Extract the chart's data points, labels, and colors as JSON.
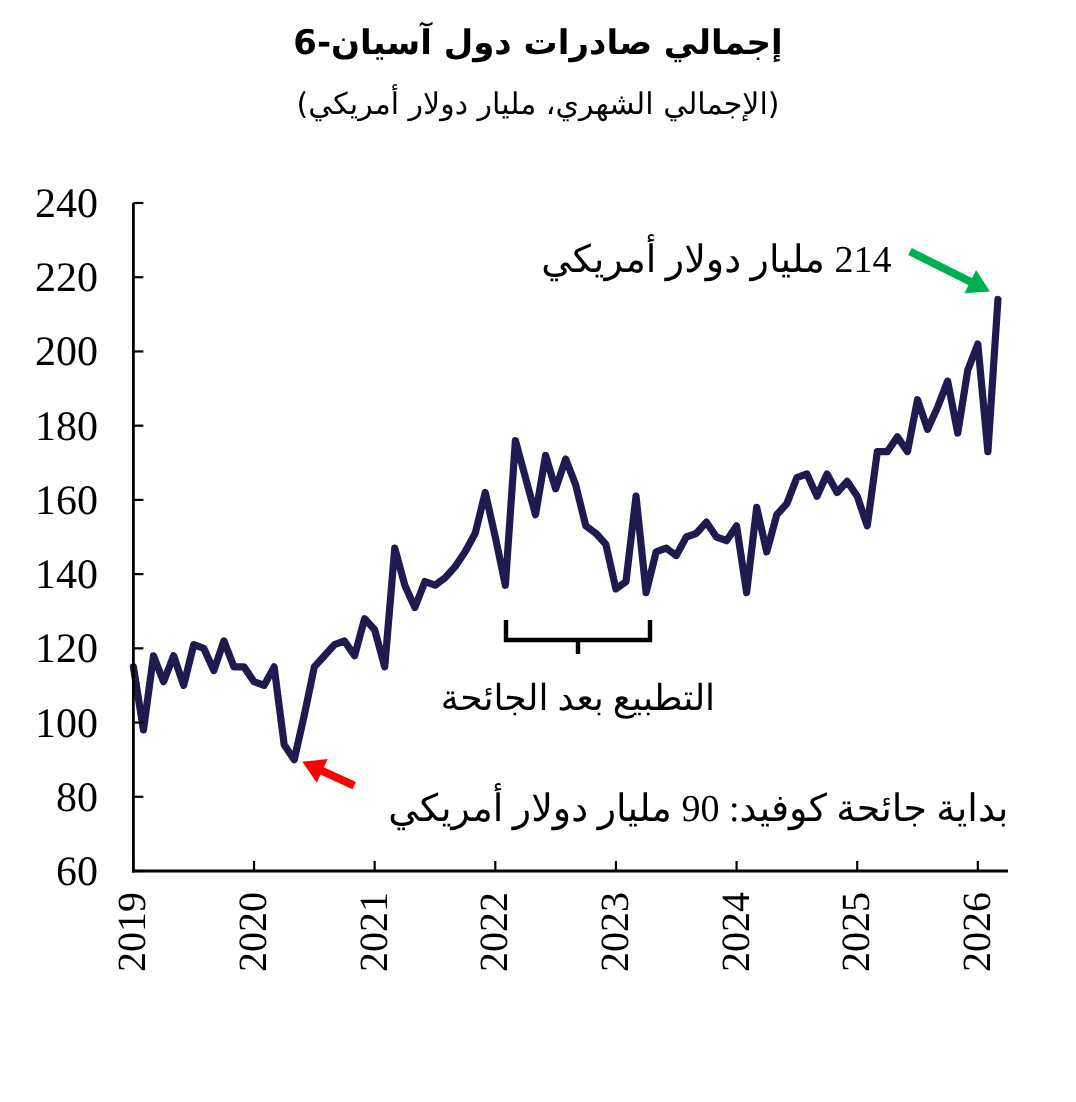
{
  "chart_data": {
    "type": "line",
    "title": "إجمالي صادرات دول آسيان-6",
    "subtitle": "(الإجمالي الشهري، مليار دولار أمريكي)",
    "x": [
      "2019-01",
      "2019-02",
      "2019-03",
      "2019-04",
      "2019-05",
      "2019-06",
      "2019-07",
      "2019-08",
      "2019-09",
      "2019-10",
      "2019-11",
      "2019-12",
      "2020-01",
      "2020-02",
      "2020-03",
      "2020-04",
      "2020-05",
      "2020-06",
      "2020-07",
      "2020-08",
      "2020-09",
      "2020-10",
      "2020-11",
      "2020-12",
      "2021-01",
      "2021-02",
      "2021-03",
      "2021-04",
      "2021-05",
      "2021-06",
      "2021-07",
      "2021-08",
      "2021-09",
      "2021-10",
      "2021-11",
      "2021-12",
      "2022-01",
      "2022-02",
      "2022-03",
      "2022-04",
      "2022-05",
      "2022-06",
      "2022-07",
      "2022-08",
      "2022-09",
      "2022-10",
      "2022-11",
      "2022-12",
      "2023-01",
      "2023-02",
      "2023-03",
      "2023-04",
      "2023-05",
      "2023-06",
      "2023-07",
      "2023-08",
      "2023-09",
      "2023-10",
      "2023-11",
      "2023-12",
      "2024-01",
      "2024-02",
      "2024-03",
      "2024-04",
      "2024-05",
      "2024-06",
      "2024-07",
      "2024-08",
      "2024-09",
      "2024-10",
      "2024-11",
      "2024-12",
      "2025-01",
      "2025-02",
      "2025-03",
      "2025-04",
      "2025-05",
      "2025-06",
      "2025-07",
      "2025-08",
      "2025-09",
      "2025-10",
      "2025-11",
      "2025-12",
      "2026-01",
      "2026-02",
      "2026-03"
    ],
    "series": [
      {
        "color": "#1f1a4f",
        "values": [
          115,
          98,
          118,
          111,
          118,
          110,
          121,
          120,
          114,
          122,
          115,
          115,
          111,
          110,
          115,
          94,
          90,
          102,
          115,
          118,
          121,
          122,
          118,
          128,
          125,
          115,
          147,
          137,
          131,
          138,
          137,
          139,
          142,
          146,
          151,
          162,
          150,
          137,
          176,
          166,
          156,
          172,
          163,
          171,
          164,
          153,
          151,
          148,
          136,
          138,
          161,
          135,
          146,
          147,
          145,
          150,
          151,
          154,
          150,
          149,
          153,
          135,
          158,
          146,
          156,
          159,
          166,
          167,
          161,
          167,
          162,
          165,
          161,
          153,
          173,
          173,
          177,
          173,
          187,
          179,
          185,
          192,
          178,
          195,
          202,
          173,
          214
        ]
      }
    ],
    "xlim": [
      "2019",
      "2026-04"
    ],
    "xticks": [
      "2019",
      "2020",
      "2021",
      "2022",
      "2023",
      "2024",
      "2025",
      "2026"
    ],
    "ylim": [
      60,
      240
    ],
    "yticks": [
      60,
      80,
      100,
      120,
      140,
      160,
      180,
      200,
      220,
      240
    ],
    "line_style": "solid",
    "annotations": [
      {
        "text": "214 مليار دولار أمريكي",
        "x": "2026-03",
        "y": 214
      },
      {
        "text": "بداية جائحة كوفيد: 90 مليار دولار أمريكي",
        "x": "2020-05",
        "y": 90
      },
      "التطبيع بعد الجائحة"
    ]
  }
}
